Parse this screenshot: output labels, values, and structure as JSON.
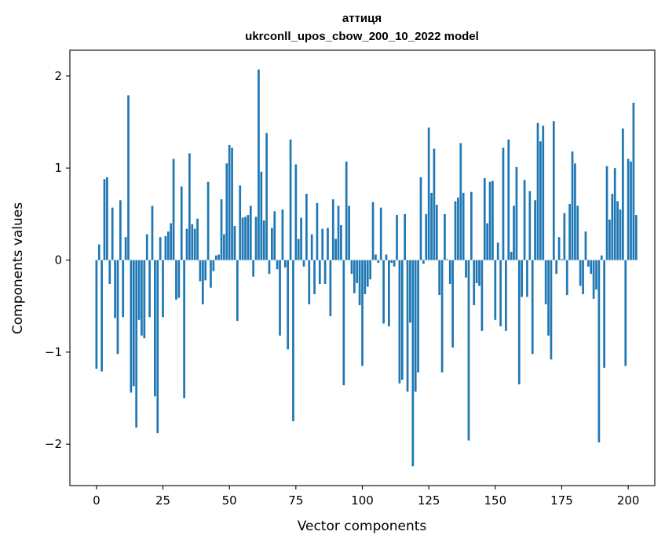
{
  "chart_data": {
    "type": "bar",
    "title": "аттиця",
    "subtitle": "ukrconll_upos_cbow_200_10_2022 model",
    "xlabel": "Vector components",
    "ylabel": "Components values",
    "xlim": [
      -10,
      210
    ],
    "ylim": [
      -2.45,
      2.28
    ],
    "xticks": [
      0,
      25,
      50,
      75,
      100,
      125,
      150,
      175,
      200
    ],
    "yticks": [
      -2,
      -1,
      0,
      1,
      2
    ],
    "xtick_labels": [
      "0",
      "25",
      "50",
      "75",
      "100",
      "125",
      "150",
      "175",
      "200"
    ],
    "ytick_labels": [
      "−2",
      "−1",
      "0",
      "1",
      "2"
    ],
    "grid": false,
    "color": "#1f77b4",
    "values": [
      -1.18,
      0.17,
      -1.21,
      0.88,
      0.9,
      -0.26,
      0.57,
      -0.63,
      -1.02,
      0.65,
      -0.62,
      0.25,
      1.79,
      -1.44,
      -1.37,
      -1.82,
      -0.65,
      -0.82,
      -0.85,
      0.28,
      -0.62,
      0.59,
      -1.48,
      -1.88,
      0.25,
      -0.62,
      0.26,
      0.31,
      0.4,
      1.1,
      -0.43,
      -0.41,
      0.8,
      -1.5,
      0.34,
      1.16,
      0.39,
      0.34,
      0.45,
      -0.23,
      -0.48,
      -0.22,
      0.85,
      -0.3,
      -0.12,
      0.05,
      0.06,
      0.66,
      0.28,
      1.05,
      1.25,
      1.22,
      0.37,
      -0.66,
      0.81,
      0.46,
      0.47,
      0.49,
      0.59,
      -0.18,
      0.47,
      2.07,
      0.96,
      0.43,
      1.38,
      -0.15,
      0.35,
      0.53,
      -0.1,
      -0.82,
      0.55,
      -0.08,
      -0.97,
      1.31,
      -1.75,
      1.04,
      0.23,
      0.46,
      -0.07,
      0.72,
      -0.48,
      0.28,
      -0.37,
      0.62,
      -0.26,
      0.34,
      -0.26,
      0.35,
      -0.61,
      0.66,
      0.23,
      0.59,
      0.38,
      -1.36,
      1.07,
      0.59,
      -0.15,
      -0.36,
      -0.25,
      -0.49,
      -1.15,
      -0.37,
      -0.29,
      -0.21,
      0.63,
      0.06,
      -0.03,
      0.57,
      -0.69,
      0.06,
      -0.72,
      -0.03,
      -0.07,
      0.49,
      -1.34,
      -1.3,
      0.5,
      -1.43,
      -0.68,
      -2.24,
      -1.43,
      -1.22,
      0.9,
      -0.04,
      0.5,
      1.44,
      0.73,
      1.21,
      0.6,
      -0.38,
      -1.22,
      0.5,
      0.01,
      -0.26,
      -0.95,
      0.64,
      0.68,
      1.27,
      0.73,
      -0.19,
      -1.96,
      0.74,
      -0.49,
      -0.25,
      -0.28,
      -0.77,
      0.89,
      0.4,
      0.85,
      0.86,
      -0.65,
      0.19,
      -0.72,
      1.22,
      -0.77,
      1.31,
      0.09,
      0.59,
      1.01,
      -1.35,
      -0.4,
      0.87,
      -0.4,
      0.75,
      -1.02,
      0.65,
      1.49,
      1.29,
      1.46,
      -0.48,
      -0.82,
      -1.08,
      1.51,
      -0.15,
      0.25,
      0.01,
      0.51,
      -0.38,
      0.61,
      1.18,
      1.05,
      0.59,
      -0.28,
      -0.37,
      0.31,
      -0.07,
      -0.15,
      -0.42,
      -0.32,
      -1.98,
      0.05,
      -1.17,
      1.02,
      0.44,
      0.72,
      1.0,
      0.64,
      0.55,
      1.43,
      -1.15,
      1.1,
      1.07,
      1.71,
      0.49
    ]
  }
}
